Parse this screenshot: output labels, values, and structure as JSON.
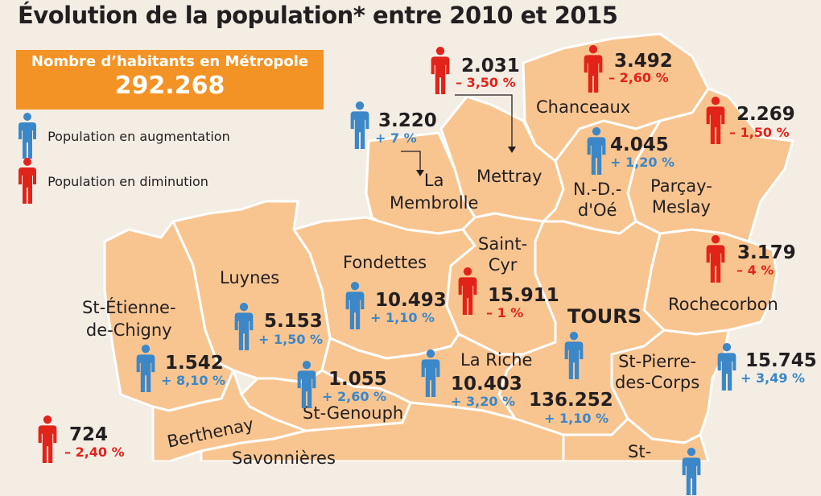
{
  "title": "Évolution de la population* entre 2010 et 2015",
  "total": {
    "label": "Nombre d’habitants en Métropole",
    "value": "292.268"
  },
  "legend": {
    "up": "Population en augmentation",
    "down": "Population en diminution"
  },
  "colors": {
    "up": "#3b87c8",
    "down": "#e2231a",
    "land": "#f8c591",
    "box": "#f39325"
  },
  "city_label": "TOURS",
  "communes": [
    {
      "id": "mettray",
      "name": "Mettray",
      "population": "2.031",
      "change": "– 3,50 %",
      "trend": "down"
    },
    {
      "id": "chanceaux",
      "name": "Chanceaux",
      "population": "3.492",
      "change": "– 2,60 %",
      "trend": "down"
    },
    {
      "id": "parcay",
      "name": "Parçay-\nMeslay",
      "population": "2.269",
      "change": "– 1,50 %",
      "trend": "down"
    },
    {
      "id": "membrolle",
      "name": "La\nMembrolle",
      "population": "3.220",
      "change": "+ 7 %",
      "trend": "up"
    },
    {
      "id": "ndoe",
      "name": "N.-D.-\nd'Oé",
      "population": "4.045",
      "change": "+ 1,20 %",
      "trend": "up"
    },
    {
      "id": "rochecorbon",
      "name": "Rochecorbon",
      "population": "3.179",
      "change": "– 4 %",
      "trend": "down"
    },
    {
      "id": "fondettes",
      "name": "Fondettes",
      "population": "10.493",
      "change": "+ 1,10 %",
      "trend": "up"
    },
    {
      "id": "saintcyr",
      "name": "Saint-\nCyr",
      "population": "15.911",
      "change": "– 1 %",
      "trend": "down"
    },
    {
      "id": "luynes",
      "name": "Luynes",
      "population": "5.153",
      "change": "+ 1,50 %",
      "trend": "up"
    },
    {
      "id": "stetienne",
      "name": "St-Étienne-\nde-Chigny",
      "population": "1.542",
      "change": "+ 8,10 %",
      "trend": "up"
    },
    {
      "id": "stgenouph",
      "name": "St-Genouph",
      "population": "1.055",
      "change": "+ 2,60 %",
      "trend": "up"
    },
    {
      "id": "lariche",
      "name": "La Riche",
      "population": "10.403",
      "change": "+ 3,20 %",
      "trend": "up"
    },
    {
      "id": "tours",
      "name": "",
      "population": "136.252",
      "change": "+ 1,10 %",
      "trend": "up"
    },
    {
      "id": "stpierre",
      "name": "St-Pierre-\ndes-Corps",
      "population": "15.745",
      "change": "+ 3,49 %",
      "trend": "up"
    },
    {
      "id": "berthenay",
      "name": "Berthenay",
      "population": "724",
      "change": "– 2,40 %",
      "trend": "down"
    },
    {
      "id": "savonnieres",
      "name": "Savonnières",
      "population": "",
      "change": "",
      "trend": ""
    },
    {
      "id": "stavertin",
      "name": "St-",
      "population": "",
      "change": "",
      "trend": ""
    }
  ]
}
